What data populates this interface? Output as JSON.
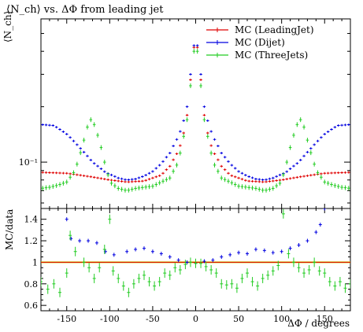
{
  "chart_data": {
    "type": "scatter",
    "title": "⟨N_ch⟩ vs. ΔΦ from leading jet",
    "xlabel": "ΔΦ / degrees",
    "main_ylabel": "⟨N_ch⟩",
    "ratio_ylabel": "MC/data",
    "xlim": [
      -180,
      180
    ],
    "main_ylim": [
      0.056,
      0.6
    ],
    "main_yscale": "log",
    "main_yticks": [
      {
        "value": 0.1,
        "label": "10⁻¹"
      }
    ],
    "ratio_ylim": [
      0.55,
      1.5
    ],
    "ratio_yticks": [
      0.6,
      0.8,
      1,
      1.2,
      1.4
    ],
    "xticks": [
      -150,
      -100,
      -50,
      0,
      50,
      100,
      150
    ],
    "legend": [
      "MC (LeadingJet)",
      "MC (Dijet)",
      "MC (ThreeJets)"
    ],
    "legend_position": "top-right",
    "reference_line": 1,
    "colors": {
      "leadingjet": "#e00000",
      "dijet": "#0000e0",
      "threejets": "#22cc22",
      "reference": "#c8c800"
    },
    "series": [
      {
        "name": "MC (LeadingJet)",
        "main": [
          [
            -180,
            0.088
          ],
          [
            -150,
            0.087
          ],
          [
            -120,
            0.083
          ],
          [
            -100,
            0.08
          ],
          [
            -80,
            0.078
          ],
          [
            -60,
            0.079
          ],
          [
            -40,
            0.085
          ],
          [
            -30,
            0.095
          ],
          [
            -20,
            0.115
          ],
          [
            -15,
            0.135
          ],
          [
            -10,
            0.18
          ],
          [
            -8,
            0.22
          ],
          [
            -6,
            0.28
          ],
          [
            -4,
            0.35
          ],
          [
            -2,
            0.42
          ],
          [
            0,
            0.46
          ],
          [
            2,
            0.42
          ],
          [
            4,
            0.35
          ],
          [
            6,
            0.28
          ],
          [
            8,
            0.22
          ],
          [
            10,
            0.18
          ],
          [
            15,
            0.135
          ],
          [
            20,
            0.115
          ],
          [
            30,
            0.095
          ],
          [
            40,
            0.085
          ],
          [
            60,
            0.079
          ],
          [
            80,
            0.078
          ],
          [
            100,
            0.08
          ],
          [
            120,
            0.083
          ],
          [
            150,
            0.087
          ],
          [
            180,
            0.088
          ]
        ],
        "ratio": [
          [
            -180,
            1.0
          ],
          [
            -90,
            1.0
          ],
          [
            0,
            1.0
          ],
          [
            90,
            1.0
          ],
          [
            180,
            1.0
          ]
        ]
      },
      {
        "name": "MC (Dijet)",
        "main": [
          [
            -180,
            0.16
          ],
          [
            -165,
            0.158
          ],
          [
            -150,
            0.142
          ],
          [
            -135,
            0.12
          ],
          [
            -120,
            0.1
          ],
          [
            -105,
            0.088
          ],
          [
            -90,
            0.082
          ],
          [
            -80,
            0.08
          ],
          [
            -70,
            0.081
          ],
          [
            -60,
            0.084
          ],
          [
            -50,
            0.089
          ],
          [
            -40,
            0.098
          ],
          [
            -30,
            0.112
          ],
          [
            -20,
            0.138
          ],
          [
            -15,
            0.16
          ],
          [
            -10,
            0.2
          ],
          [
            -8,
            0.24
          ],
          [
            -6,
            0.3
          ],
          [
            -4,
            0.36
          ],
          [
            -2,
            0.43
          ],
          [
            0,
            0.47
          ],
          [
            2,
            0.43
          ],
          [
            4,
            0.36
          ],
          [
            6,
            0.3
          ],
          [
            8,
            0.24
          ],
          [
            10,
            0.2
          ],
          [
            15,
            0.16
          ],
          [
            20,
            0.138
          ],
          [
            30,
            0.112
          ],
          [
            40,
            0.098
          ],
          [
            50,
            0.089
          ],
          [
            60,
            0.084
          ],
          [
            70,
            0.081
          ],
          [
            80,
            0.08
          ],
          [
            90,
            0.082
          ],
          [
            105,
            0.088
          ],
          [
            120,
            0.1
          ],
          [
            135,
            0.12
          ],
          [
            150,
            0.142
          ],
          [
            165,
            0.158
          ],
          [
            180,
            0.16
          ]
        ],
        "ratio": [
          [
            -180,
            1.55
          ],
          [
            -150,
            1.4
          ],
          [
            -145,
            1.22
          ],
          [
            -135,
            1.2
          ],
          [
            -125,
            1.2
          ],
          [
            -115,
            1.18
          ],
          [
            -105,
            1.1
          ],
          [
            -95,
            1.07
          ],
          [
            -80,
            1.1
          ],
          [
            -70,
            1.12
          ],
          [
            -60,
            1.13
          ],
          [
            -50,
            1.1
          ],
          [
            -40,
            1.08
          ],
          [
            -30,
            1.05
          ],
          [
            -20,
            1.02
          ],
          [
            -10,
            1.0
          ],
          [
            0,
            0.99
          ],
          [
            10,
            1.01
          ],
          [
            20,
            1.02
          ],
          [
            30,
            1.05
          ],
          [
            40,
            1.07
          ],
          [
            50,
            1.09
          ],
          [
            60,
            1.08
          ],
          [
            70,
            1.12
          ],
          [
            80,
            1.11
          ],
          [
            90,
            1.09
          ],
          [
            100,
            1.1
          ],
          [
            110,
            1.13
          ],
          [
            120,
            1.16
          ],
          [
            130,
            1.2
          ],
          [
            140,
            1.28
          ],
          [
            145,
            1.35
          ],
          [
            150,
            1.5
          ],
          [
            160,
            1.52
          ],
          [
            180,
            1.55
          ]
        ]
      },
      {
        "name": "MC (ThreeJets)",
        "main": [
          [
            -180,
            0.072
          ],
          [
            -170,
            0.073
          ],
          [
            -160,
            0.075
          ],
          [
            -150,
            0.078
          ],
          [
            -140,
            0.09
          ],
          [
            -132,
            0.12
          ],
          [
            -126,
            0.155
          ],
          [
            -122,
            0.17
          ],
          [
            -118,
            0.16
          ],
          [
            -112,
            0.13
          ],
          [
            -106,
            0.1
          ],
          [
            -100,
            0.078
          ],
          [
            -90,
            0.072
          ],
          [
            -80,
            0.07
          ],
          [
            -70,
            0.072
          ],
          [
            -60,
            0.073
          ],
          [
            -50,
            0.074
          ],
          [
            -40,
            0.078
          ],
          [
            -30,
            0.082
          ],
          [
            -20,
            0.1
          ],
          [
            -15,
            0.13
          ],
          [
            -10,
            0.17
          ],
          [
            -8,
            0.2
          ],
          [
            -6,
            0.26
          ],
          [
            -4,
            0.33
          ],
          [
            -2,
            0.4
          ],
          [
            0,
            0.45
          ],
          [
            2,
            0.4
          ],
          [
            4,
            0.33
          ],
          [
            6,
            0.26
          ],
          [
            8,
            0.2
          ],
          [
            10,
            0.17
          ],
          [
            15,
            0.13
          ],
          [
            20,
            0.1
          ],
          [
            30,
            0.082
          ],
          [
            40,
            0.078
          ],
          [
            50,
            0.074
          ],
          [
            60,
            0.073
          ],
          [
            70,
            0.072
          ],
          [
            80,
            0.07
          ],
          [
            90,
            0.072
          ],
          [
            100,
            0.078
          ],
          [
            106,
            0.1
          ],
          [
            112,
            0.13
          ],
          [
            118,
            0.16
          ],
          [
            122,
            0.17
          ],
          [
            126,
            0.155
          ],
          [
            132,
            0.12
          ],
          [
            140,
            0.09
          ],
          [
            150,
            0.078
          ],
          [
            160,
            0.075
          ],
          [
            170,
            0.073
          ],
          [
            180,
            0.072
          ]
        ],
        "ratio": [
          [
            -180,
            0.82
          ],
          [
            -172,
            0.75
          ],
          [
            -165,
            0.8
          ],
          [
            -158,
            0.72
          ],
          [
            -150,
            0.9
          ],
          [
            -146,
            1.25
          ],
          [
            -140,
            1.1
          ],
          [
            -130,
            1.0
          ],
          [
            -124,
            0.95
          ],
          [
            -118,
            0.85
          ],
          [
            -112,
            0.95
          ],
          [
            -106,
            1.12
          ],
          [
            -100,
            1.4
          ],
          [
            -96,
            0.92
          ],
          [
            -90,
            0.85
          ],
          [
            -84,
            0.78
          ],
          [
            -78,
            0.72
          ],
          [
            -72,
            0.8
          ],
          [
            -66,
            0.85
          ],
          [
            -60,
            0.88
          ],
          [
            -54,
            0.82
          ],
          [
            -48,
            0.78
          ],
          [
            -42,
            0.82
          ],
          [
            -36,
            0.9
          ],
          [
            -30,
            0.88
          ],
          [
            -24,
            0.95
          ],
          [
            -18,
            0.93
          ],
          [
            -12,
            0.98
          ],
          [
            -6,
            1.0
          ],
          [
            0,
            0.99
          ],
          [
            6,
            0.99
          ],
          [
            12,
            0.96
          ],
          [
            18,
            0.93
          ],
          [
            24,
            0.9
          ],
          [
            30,
            0.8
          ],
          [
            36,
            0.79
          ],
          [
            42,
            0.8
          ],
          [
            48,
            0.76
          ],
          [
            54,
            0.85
          ],
          [
            60,
            0.9
          ],
          [
            66,
            0.82
          ],
          [
            72,
            0.78
          ],
          [
            78,
            0.85
          ],
          [
            84,
            0.88
          ],
          [
            90,
            0.92
          ],
          [
            96,
            0.97
          ],
          [
            102,
            1.45
          ],
          [
            108,
            1.08
          ],
          [
            114,
            1.0
          ],
          [
            120,
            0.95
          ],
          [
            126,
            0.9
          ],
          [
            132,
            0.93
          ],
          [
            138,
            1.0
          ],
          [
            144,
            0.92
          ],
          [
            150,
            0.9
          ],
          [
            156,
            0.82
          ],
          [
            162,
            0.78
          ],
          [
            168,
            0.82
          ],
          [
            174,
            0.76
          ],
          [
            180,
            0.8
          ]
        ]
      }
    ]
  }
}
